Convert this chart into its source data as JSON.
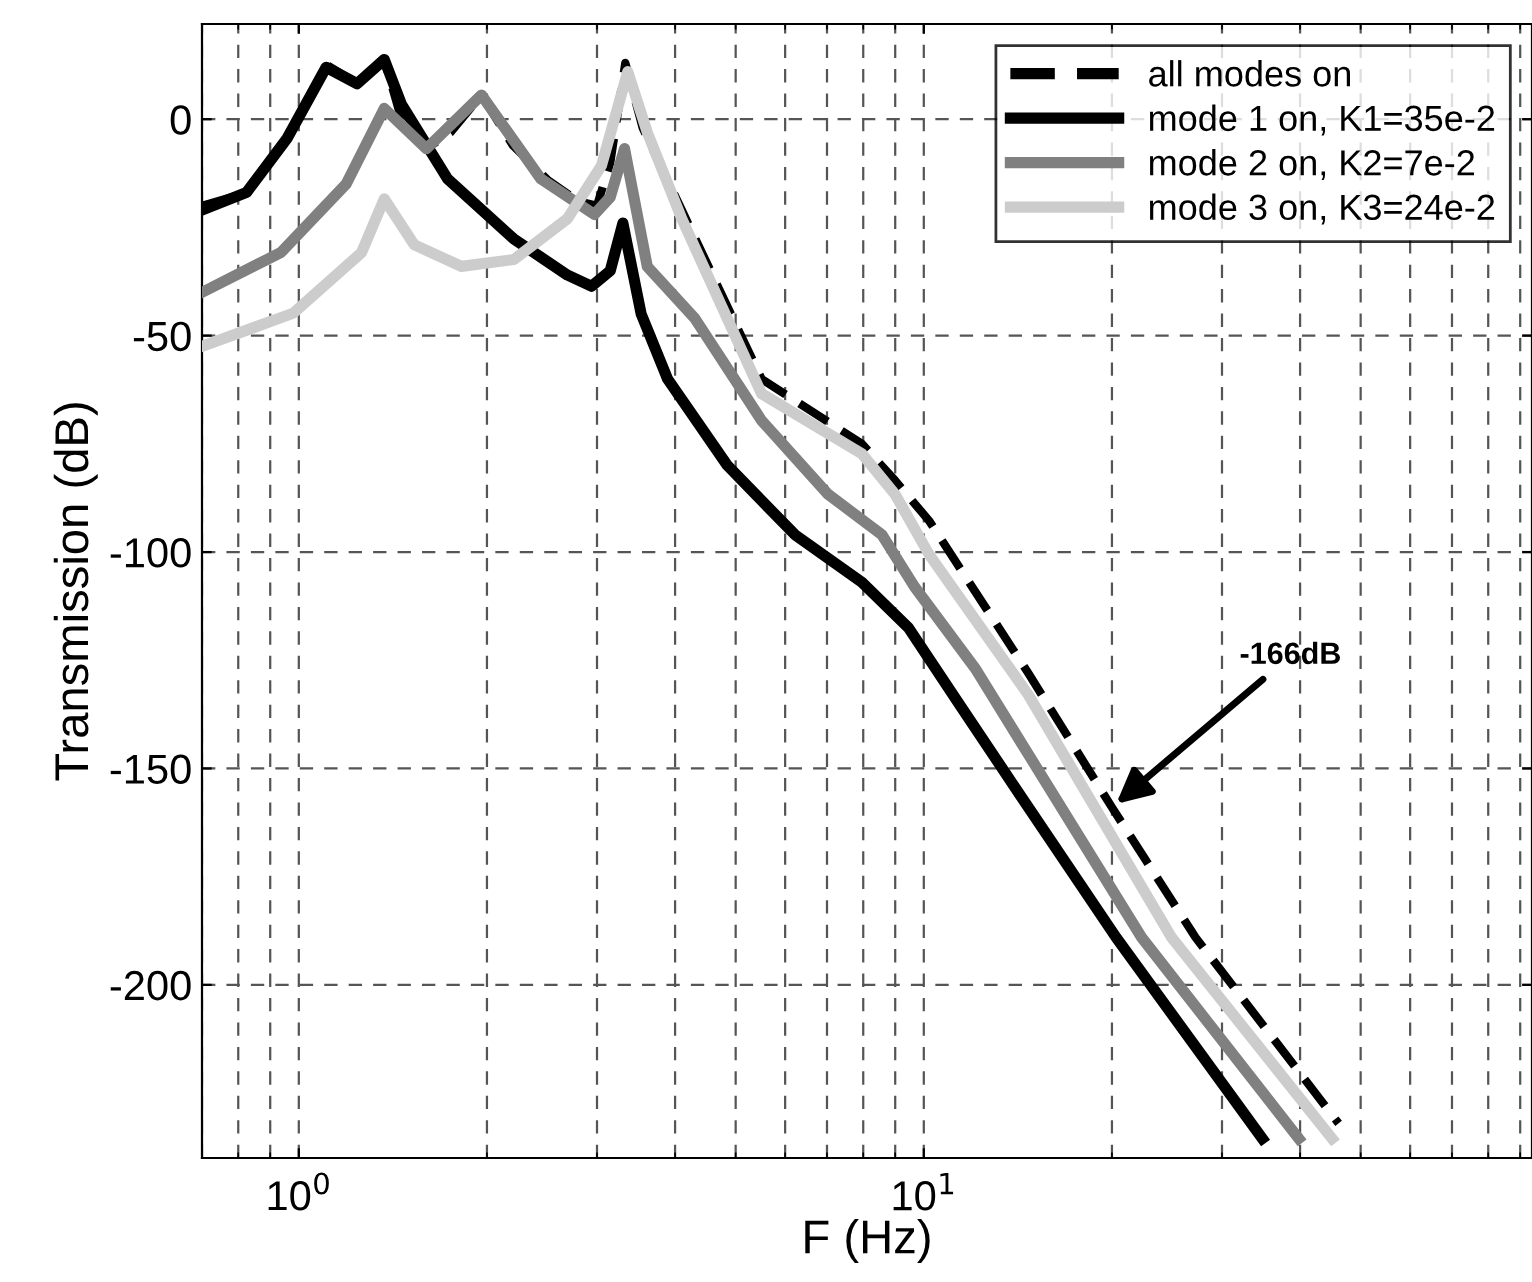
{
  "chart_data": {
    "type": "line",
    "xlabel": "F (Hz)",
    "ylabel": "Transmission (dB)",
    "log": "x",
    "xlim": [
      0.7,
      94
    ],
    "ylim": [
      -240,
      22
    ],
    "xticks": [
      {
        "value": 1,
        "label": "10$^{0}$"
      },
      {
        "value": 10,
        "label": "10$^{1}$"
      }
    ],
    "yticks": [
      -200,
      -150,
      -100,
      -50,
      0
    ],
    "grid": true,
    "legend": "top right",
    "series": [
      {
        "name": "all modes on",
        "color": "#000000",
        "line_style": "dashed",
        "x": [
          0.7,
          0.825,
          0.957,
          1.106,
          1.24,
          1.37,
          1.46,
          1.6,
          1.75,
          1.96,
          2.2,
          2.5,
          2.8,
          3.0,
          3.15,
          3.33,
          3.55,
          4.1,
          5.5,
          7.96,
          9.0,
          10.2,
          14.7,
          20,
          27.2,
          46.1
        ],
        "values": [
          -20,
          -17,
          -4.5,
          12.6,
          8.2,
          13.8,
          0,
          -6.8,
          -3,
          5.6,
          -6,
          -14,
          -19,
          -20,
          -10,
          13,
          -2,
          -21,
          -60,
          -75,
          -83.5,
          -92.8,
          -128,
          -159,
          -189,
          -232
        ]
      },
      {
        "name": "mode 1 on, K1=35e-2",
        "color": "#000000",
        "line_style": "solid",
        "x": [
          0.7,
          0.825,
          0.957,
          1.106,
          1.24,
          1.37,
          1.46,
          1.73,
          2.21,
          2.69,
          2.94,
          3.15,
          3.3,
          3.53,
          3.89,
          4.85,
          6.22,
          7.96,
          9.45,
          11.5,
          14.7,
          20.3,
          34.8
        ],
        "values": [
          -21,
          -16.9,
          -4.5,
          12,
          8.2,
          13.8,
          3.4,
          -13.8,
          -27.7,
          -36,
          -38.6,
          -35,
          -24,
          -45,
          -60,
          -80,
          -96,
          -107,
          -117.5,
          -136,
          -159,
          -189,
          -235.5
        ]
      },
      {
        "name": "mode 2 on, K2=7e-2",
        "color": "#808080",
        "line_style": "solid",
        "x": [
          0.7,
          0.936,
          1.19,
          1.37,
          1.6,
          1.96,
          2.44,
          2.97,
          3.15,
          3.32,
          3.61,
          4.3,
          5.5,
          7.02,
          8.57,
          9.66,
          12.1,
          22.3,
          39.8
        ],
        "values": [
          -40,
          -30.8,
          -15,
          2.5,
          -6.8,
          5.6,
          -13.8,
          -22,
          -18,
          -6.8,
          -34,
          -46,
          -69.6,
          -86.6,
          -96,
          -108,
          -127,
          -189,
          -235.5
        ]
      },
      {
        "name": "mode 3 on, K3=24e-2",
        "color": "#cccccc",
        "line_style": "solid",
        "x": [
          0.7,
          0.98,
          1.26,
          1.37,
          1.53,
          1.82,
          2.21,
          2.69,
          3.05,
          3.36,
          3.61,
          4.1,
          5.5,
          7.96,
          9.0,
          10.2,
          14.7,
          24.9,
          45
        ],
        "values": [
          -52.5,
          -44.8,
          -30.8,
          -18.4,
          -29,
          -34,
          -32.4,
          -23,
          -10.7,
          11,
          -3,
          -23,
          -63.4,
          -77.3,
          -86.7,
          -100.6,
          -133,
          -189,
          -235.5
        ]
      }
    ],
    "annotations": [
      {
        "text": "-166dB",
        "x": 20,
        "y": -159
      }
    ]
  }
}
